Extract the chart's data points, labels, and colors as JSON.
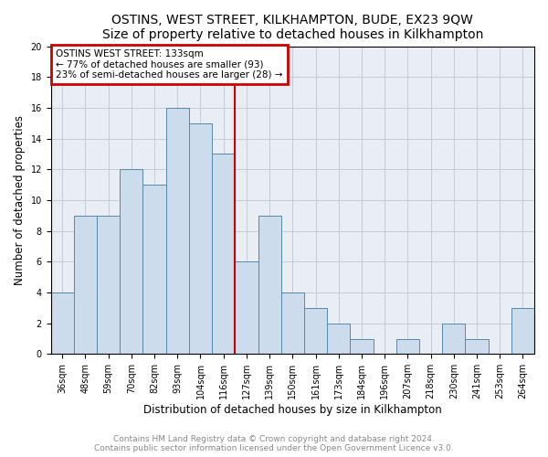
{
  "title": "OSTINS, WEST STREET, KILKHAMPTON, BUDE, EX23 9QW",
  "subtitle": "Size of property relative to detached houses in Kilkhampton",
  "xlabel": "Distribution of detached houses by size in Kilkhampton",
  "ylabel": "Number of detached properties",
  "footnote1": "Contains HM Land Registry data © Crown copyright and database right 2024.",
  "footnote2": "Contains public sector information licensed under the Open Government Licence v3.0.",
  "bar_labels": [
    "36sqm",
    "48sqm",
    "59sqm",
    "70sqm",
    "82sqm",
    "93sqm",
    "104sqm",
    "116sqm",
    "127sqm",
    "139sqm",
    "150sqm",
    "161sqm",
    "173sqm",
    "184sqm",
    "196sqm",
    "207sqm",
    "218sqm",
    "230sqm",
    "241sqm",
    "253sqm",
    "264sqm"
  ],
  "bar_values": [
    4,
    9,
    9,
    12,
    11,
    16,
    15,
    13,
    6,
    9,
    4,
    3,
    2,
    1,
    0,
    1,
    0,
    2,
    1,
    0,
    3
  ],
  "bar_color": "#ccdcec",
  "bar_edge_color": "#5588aa",
  "annotation_line1": "OSTINS WEST STREET: 133sqm",
  "annotation_line2": "← 77% of detached houses are smaller (93)",
  "annotation_line3": "23% of semi-detached houses are larger (28) →",
  "annotation_box_color": "#cc0000",
  "vline_x_index": 8.0,
  "vline_color": "#cc0000",
  "ylim": [
    0,
    20
  ],
  "yticks": [
    0,
    2,
    4,
    6,
    8,
    10,
    12,
    14,
    16,
    18,
    20
  ],
  "grid_color": "#c0c8d0",
  "background_color": "#e8eef4",
  "title_fontsize": 10,
  "xlabel_fontsize": 8.5,
  "ylabel_fontsize": 8.5,
  "tick_fontsize": 7,
  "footnote_fontsize": 6.5
}
